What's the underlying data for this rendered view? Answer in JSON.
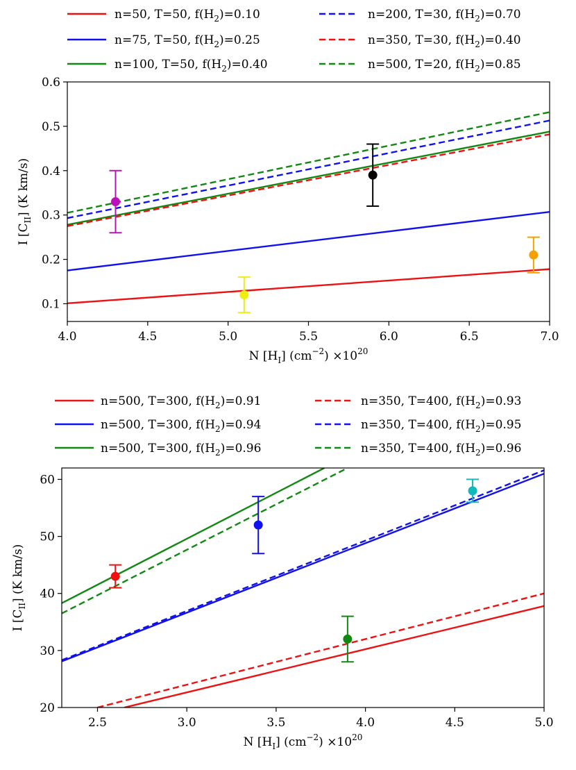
{
  "chart_data": [
    {
      "type": "line",
      "xlabel": "N [H",
      "xlabel_sub": "I",
      "xlabel_tail": "] (cm",
      "xlabel_exp": "−2",
      "xlabel_end": ") ×10",
      "xlabel_pow": "20",
      "ylabel": "I [C",
      "ylabel_sub": "II",
      "ylabel_end": "] (K km/s)",
      "xlim": [
        4.0,
        7.0
      ],
      "ylim": [
        0.06,
        0.6
      ],
      "xticks": [
        "4.0",
        "4.5",
        "5.0",
        "5.5",
        "6.0",
        "6.5",
        "7.0"
      ],
      "xtick_values": [
        4.0,
        4.5,
        5.0,
        5.5,
        6.0,
        6.5,
        7.0
      ],
      "yticks": [
        "0.1",
        "0.2",
        "0.3",
        "0.4",
        "0.5",
        "0.6"
      ],
      "ytick_values": [
        0.1,
        0.2,
        0.3,
        0.4,
        0.5,
        0.6
      ],
      "legend_position": "top (above plot)",
      "series": [
        {
          "name": "n=50, T=50, f(H",
          "sub": "2",
          "tail": ")=0.10",
          "color": "#ee1111",
          "dash": false,
          "x": [
            4.0,
            7.0
          ],
          "y": [
            0.101,
            0.178
          ]
        },
        {
          "name": "n=75, T=50, f(H",
          "sub": "2",
          "tail": ")=0.25",
          "color": "#1111ee",
          "dash": false,
          "x": [
            4.0,
            7.0
          ],
          "y": [
            0.175,
            0.307
          ]
        },
        {
          "name": "n=100, T=50, f(H",
          "sub": "2",
          "tail": ")=0.40",
          "color": "#118811",
          "dash": false,
          "x": [
            4.0,
            7.0
          ],
          "y": [
            0.278,
            0.488
          ]
        },
        {
          "name": "n=200, T=30, f(H",
          "sub": "2",
          "tail": ")=0.70",
          "color": "#1111ee",
          "dash": true,
          "x": [
            4.0,
            7.0
          ],
          "y": [
            0.293,
            0.513
          ]
        },
        {
          "name": "n=350, T=30, f(H",
          "sub": "2",
          "tail": ")=0.40",
          "color": "#ee1111",
          "dash": true,
          "x": [
            4.0,
            7.0
          ],
          "y": [
            0.275,
            0.482
          ]
        },
        {
          "name": "n=500, T=20, f(H",
          "sub": "2",
          "tail": ")=0.85",
          "color": "#118811",
          "dash": true,
          "x": [
            4.0,
            7.0
          ],
          "y": [
            0.305,
            0.532
          ]
        }
      ],
      "points": [
        {
          "x": 4.3,
          "y": 0.33,
          "err": 0.07,
          "color": "#bb11bb"
        },
        {
          "x": 5.1,
          "y": 0.12,
          "err": 0.04,
          "color": "#eeee11"
        },
        {
          "x": 5.9,
          "y": 0.39,
          "err": 0.07,
          "color": "#000000"
        },
        {
          "x": 6.9,
          "y": 0.21,
          "err": 0.04,
          "color": "#f5a000"
        }
      ]
    },
    {
      "type": "line",
      "xlabel": "N [H",
      "xlabel_sub": "I",
      "xlabel_tail": "] (cm",
      "xlabel_exp": "−2",
      "xlabel_end": ") ×10",
      "xlabel_pow": "20",
      "ylabel": "I [C",
      "ylabel_sub": "II",
      "ylabel_end": "] (K km/s)",
      "xlim": [
        2.3,
        5.0
      ],
      "ylim": [
        20,
        62
      ],
      "xticks": [
        "2.5",
        "3.0",
        "3.5",
        "4.0",
        "4.5",
        "5.0"
      ],
      "xtick_values": [
        2.5,
        3.0,
        3.5,
        4.0,
        4.5,
        5.0
      ],
      "yticks": [
        "20",
        "30",
        "40",
        "50",
        "60"
      ],
      "ytick_values": [
        20,
        30,
        40,
        50,
        60
      ],
      "legend_position": "top (above plot)",
      "series": [
        {
          "name": "n=500, T=300, f(H",
          "sub": "2",
          "tail": ")=0.91",
          "color": "#ee1111",
          "dash": false,
          "x": [
            2.65,
            5.0
          ],
          "y": [
            20.0,
            37.8
          ]
        },
        {
          "name": "n=500, T=300, f(H",
          "sub": "2",
          "tail": ")=0.94",
          "color": "#1111ee",
          "dash": false,
          "x": [
            2.3,
            5.0
          ],
          "y": [
            28.1,
            61.0
          ]
        },
        {
          "name": "n=500, T=300, f(H",
          "sub": "2",
          "tail": ")=0.96",
          "color": "#118811",
          "dash": false,
          "x": [
            2.3,
            3.77
          ],
          "y": [
            38.3,
            62.0
          ]
        },
        {
          "name": "n=350, T=400, f(H",
          "sub": "2",
          "tail": ")=0.93",
          "color": "#ee1111",
          "dash": true,
          "x": [
            2.5,
            5.0
          ],
          "y": [
            20.0,
            40.0
          ]
        },
        {
          "name": "n=350, T=400, f(H",
          "sub": "2",
          "tail": ")=0.95",
          "color": "#1111ee",
          "dash": true,
          "x": [
            2.3,
            5.0
          ],
          "y": [
            28.3,
            61.6
          ]
        },
        {
          "name": "n=350, T=400, f(H",
          "sub": "2",
          "tail": ")=0.96",
          "color": "#118811",
          "dash": true,
          "x": [
            2.3,
            3.9
          ],
          "y": [
            36.5,
            62.0
          ]
        }
      ],
      "points": [
        {
          "x": 2.6,
          "y": 43,
          "err": 2,
          "color": "#ee1111"
        },
        {
          "x": 3.4,
          "y": 52,
          "err": 5,
          "color": "#1111ee"
        },
        {
          "x": 3.9,
          "y": 32,
          "err": 4,
          "color": "#118811"
        },
        {
          "x": 4.6,
          "y": 58,
          "err": 2,
          "color": "#11bbbb"
        }
      ]
    }
  ]
}
